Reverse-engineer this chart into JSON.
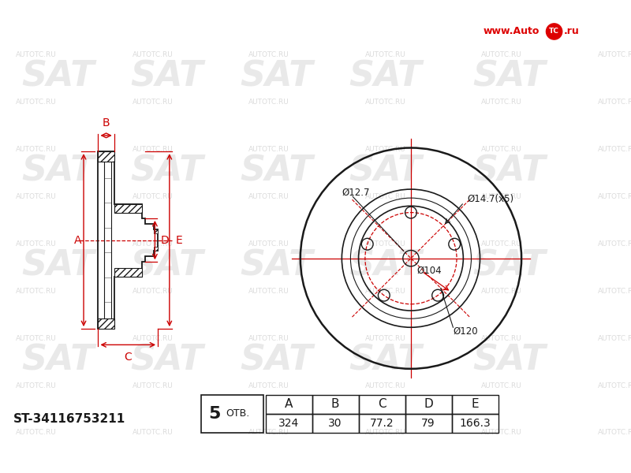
{
  "bg_color": "#ffffff",
  "dim_color": "#cc0000",
  "line_color": "#1a1a1a",
  "part_number": "ST-34116753211",
  "holes": 5,
  "label_otv": "ОТВ.",
  "table_headers": [
    "A",
    "B",
    "C",
    "D",
    "E"
  ],
  "table_values": [
    "324",
    "30",
    "77.2",
    "79",
    "166.3"
  ],
  "front_labels": {
    "d_bolt": "Ø14.7(x5)",
    "d_center": "Ø104",
    "d_inner": "Ø12.7",
    "d_outer_ring": "Ø120"
  },
  "website": "www.AutoTC.ru",
  "sat_wm_color": "#d8d8d8",
  "autotc_wm_color": "#cccccc"
}
